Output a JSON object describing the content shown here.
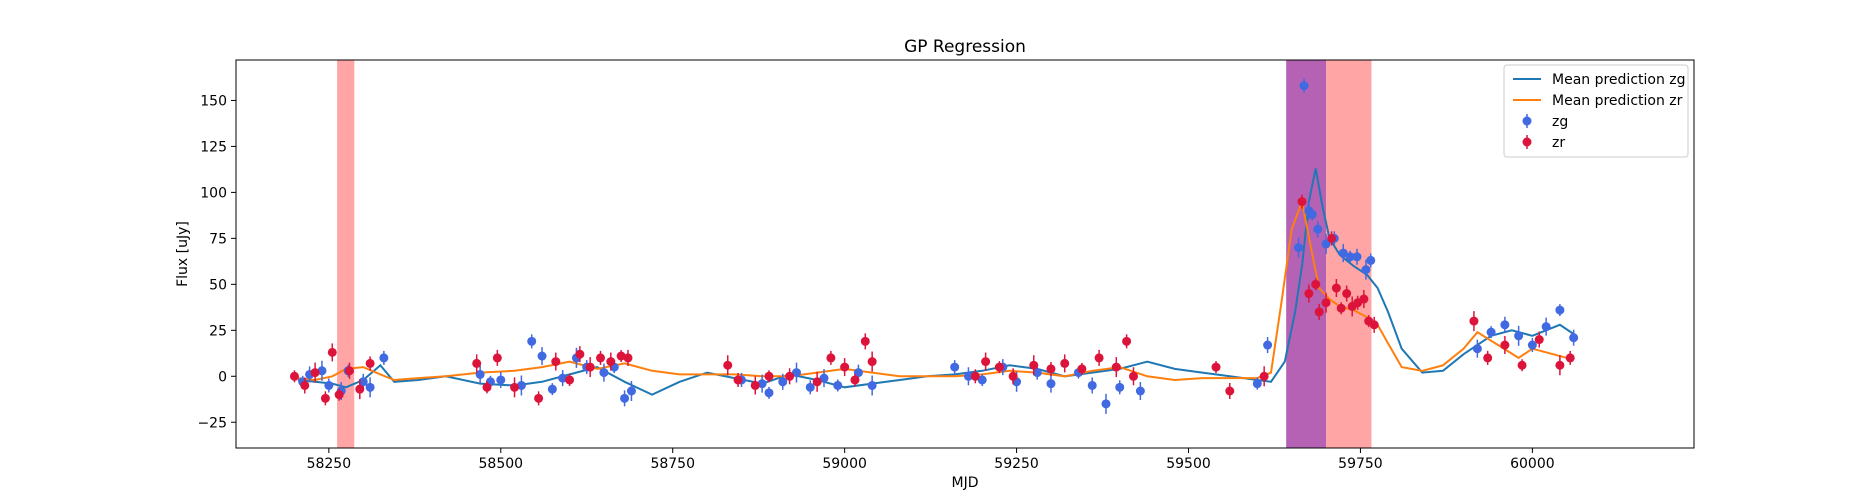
{
  "chart_data": {
    "type": "scatter",
    "title": "GP Regression",
    "xlabel": "MJD",
    "ylabel": "Flux [uJy]",
    "xlim": [
      58115,
      60235
    ],
    "ylim": [
      -39,
      172
    ],
    "xticks": [
      58250,
      58500,
      58750,
      59000,
      59250,
      59500,
      59750,
      60000
    ],
    "yticks": [
      -25,
      0,
      25,
      50,
      75,
      100,
      125,
      150
    ],
    "grid": false,
    "legend_position": "top-right",
    "shaded_regions": [
      {
        "x0": 58262,
        "x1": 58287,
        "color": "#ffa0a0"
      },
      {
        "x0": 59642,
        "x1": 59700,
        "color": "#8e0e8e"
      },
      {
        "x0": 59700,
        "x1": 59766,
        "color": "#ffa0a0"
      }
    ],
    "series": [
      {
        "name": "Mean prediction zg",
        "kind": "line",
        "color": "#1f77b4",
        "x": [
          58205,
          58230,
          58255,
          58275,
          58300,
          58325,
          58345,
          58380,
          58420,
          58470,
          58520,
          58560,
          58600,
          58640,
          58680,
          58720,
          58760,
          58800,
          58840,
          58880,
          58920,
          58960,
          59000,
          59040,
          59080,
          59120,
          59160,
          59200,
          59240,
          59280,
          59320,
          59360,
          59400,
          59440,
          59480,
          59520,
          59560,
          59600,
          59620,
          59640,
          59655,
          59665,
          59675,
          59685,
          59695,
          59705,
          59720,
          59740,
          59760,
          59775,
          59790,
          59810,
          59840,
          59870,
          59900,
          59940,
          59970,
          60000,
          60020,
          60040,
          60060
        ],
        "y": [
          -2,
          -3,
          -4,
          -6,
          -2,
          6,
          -3,
          -2,
          0,
          -4,
          -5,
          -3,
          1,
          5,
          -3,
          -10,
          -3,
          2,
          -1,
          -4,
          1,
          -2,
          -6,
          -4,
          -2,
          0,
          1,
          3,
          6,
          4,
          0,
          2,
          4,
          8,
          4,
          2,
          0,
          -2,
          -3,
          8,
          35,
          60,
          95,
          113,
          92,
          75,
          66,
          60,
          55,
          48,
          35,
          15,
          2,
          3,
          12,
          22,
          25,
          22,
          25,
          28,
          23
        ]
      },
      {
        "name": "Mean prediction zr",
        "kind": "line",
        "color": "#ff7f0e",
        "x": [
          58205,
          58230,
          58255,
          58275,
          58300,
          58325,
          58345,
          58380,
          58420,
          58470,
          58520,
          58560,
          58600,
          58640,
          58680,
          58720,
          58760,
          58800,
          58840,
          58880,
          58920,
          58960,
          59000,
          59040,
          59080,
          59120,
          59160,
          59200,
          59240,
          59280,
          59320,
          59360,
          59400,
          59440,
          59480,
          59520,
          59560,
          59600,
          59620,
          59635,
          59650,
          59665,
          59678,
          59690,
          59705,
          59720,
          59740,
          59760,
          59775,
          59790,
          59810,
          59840,
          59870,
          59900,
          59920,
          59950,
          59980,
          60000,
          60030,
          60060
        ],
        "y": [
          -1,
          -2,
          0,
          4,
          5,
          1,
          -2,
          -1,
          0,
          2,
          3,
          5,
          8,
          4,
          7,
          3,
          1,
          1,
          1,
          0,
          0,
          2,
          4,
          2,
          0,
          0,
          0,
          1,
          3,
          2,
          0,
          3,
          5,
          0,
          -2,
          -1,
          -1,
          -1,
          2,
          40,
          80,
          95,
          70,
          48,
          42,
          38,
          36,
          32,
          28,
          18,
          5,
          3,
          6,
          15,
          24,
          17,
          10,
          15,
          12,
          9
        ]
      },
      {
        "name": "zg",
        "kind": "errorbar",
        "color": "#4169e1",
        "x": [
          58212,
          58222,
          58240,
          58250,
          58268,
          58278,
          58300,
          58310,
          58330,
          58470,
          58485,
          58500,
          58530,
          58545,
          58560,
          58575,
          58590,
          58610,
          58625,
          58650,
          58665,
          58680,
          58690,
          58850,
          58880,
          58890,
          58910,
          58930,
          58950,
          58970,
          58990,
          59020,
          59040,
          59160,
          59180,
          59200,
          59230,
          59250,
          59280,
          59300,
          59340,
          59360,
          59380,
          59400,
          59430,
          59600,
          59615,
          59660,
          59668,
          59675,
          59680,
          59688,
          59700,
          59712,
          59725,
          59735,
          59745,
          59758,
          59765,
          59920,
          59940,
          59960,
          59980,
          60000,
          60020,
          60040,
          60060
        ],
        "y": [
          -3,
          1,
          3,
          -5,
          -8,
          3,
          -3,
          -6,
          10,
          1,
          -3,
          -2,
          -5,
          19,
          11,
          -7,
          -1,
          10,
          5,
          2,
          5,
          -12,
          -8,
          -2,
          -4,
          -9,
          -3,
          2,
          -6,
          -1,
          -5,
          2,
          -5,
          5,
          0,
          -2,
          5,
          -3,
          2,
          -4,
          2,
          -5,
          -15,
          -6,
          -8,
          -4,
          17,
          70,
          158,
          90,
          88,
          80,
          72,
          75,
          67,
          65,
          65,
          58,
          63,
          15,
          24,
          28,
          22,
          17,
          27,
          36,
          21
        ]
      },
      {
        "name": "zr",
        "kind": "errorbar",
        "color": "#dc143c",
        "x": [
          58200,
          58215,
          58230,
          58245,
          58255,
          58265,
          58280,
          58295,
          58310,
          58465,
          58480,
          58495,
          58520,
          58555,
          58580,
          58600,
          58615,
          58630,
          58645,
          58660,
          58675,
          58685,
          58830,
          58845,
          58870,
          58890,
          58920,
          58960,
          58980,
          59000,
          59015,
          59030,
          59040,
          59190,
          59205,
          59225,
          59245,
          59275,
          59300,
          59320,
          59345,
          59370,
          59395,
          59410,
          59420,
          59540,
          59560,
          59610,
          59665,
          59675,
          59685,
          59690,
          59700,
          59708,
          59715,
          59722,
          59730,
          59738,
          59746,
          59755,
          59762,
          59770,
          59915,
          59935,
          59960,
          59985,
          60010,
          60040,
          60055
        ],
        "y": [
          0,
          -5,
          2,
          -12,
          13,
          -10,
          3,
          -7,
          7,
          7,
          -6,
          10,
          -6,
          -12,
          8,
          -2,
          12,
          5,
          10,
          8,
          11,
          10,
          6,
          -2,
          -5,
          0,
          0,
          -3,
          10,
          5,
          -2,
          19,
          8,
          0,
          8,
          5,
          0,
          6,
          4,
          7,
          4,
          10,
          5,
          19,
          0,
          5,
          -8,
          0,
          95,
          45,
          50,
          35,
          40,
          75,
          48,
          37,
          45,
          38,
          40,
          42,
          30,
          28,
          30,
          10,
          17,
          6,
          20,
          6,
          10
        ]
      }
    ]
  }
}
